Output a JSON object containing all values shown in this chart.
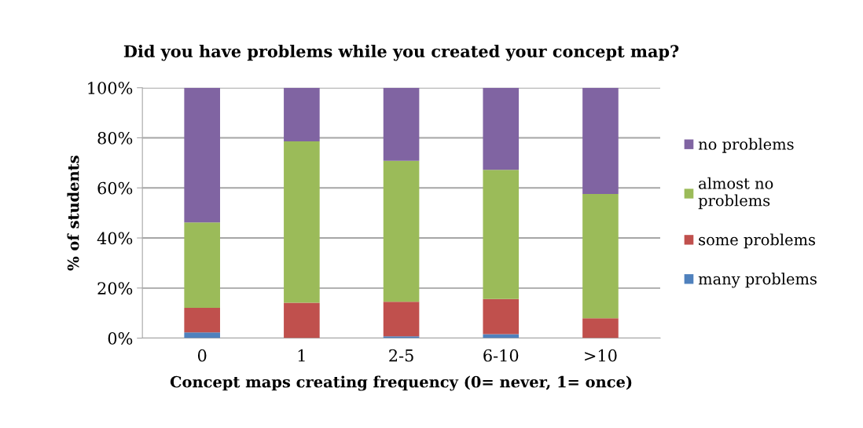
{
  "chart_data": {
    "type": "bar",
    "stacked": true,
    "title": "Did you have problems while you created your concept map?",
    "xlabel": "Concept maps creating frequency (0= never, 1= once)",
    "ylabel": "% of students",
    "categories": [
      "0",
      "1",
      "2-5",
      "6-10",
      ">10"
    ],
    "series": [
      {
        "name": "many problems",
        "color": "#4f81bd",
        "values": [
          2.3,
          0,
          0.7,
          1.6,
          0
        ]
      },
      {
        "name": "some problems",
        "color": "#c0504d",
        "values": [
          9.8,
          14.1,
          13.8,
          14.0,
          7.9
        ]
      },
      {
        "name": "almost no problems",
        "color": "#9bbb59",
        "values": [
          34.1,
          64.5,
          56.3,
          51.6,
          49.7
        ]
      },
      {
        "name": "no problems",
        "color": "#8064a2",
        "values": [
          53.8,
          21.4,
          29.2,
          32.8,
          42.4
        ]
      }
    ],
    "ylim": [
      0,
      100
    ],
    "yticks": [
      {
        "value": 0,
        "label": "0%"
      },
      {
        "value": 20,
        "label": "20%"
      },
      {
        "value": 40,
        "label": "40%"
      },
      {
        "value": 60,
        "label": "60%"
      },
      {
        "value": 80,
        "label": "80%"
      },
      {
        "value": 100,
        "label": "100%"
      }
    ],
    "grid": "y",
    "legend": "right"
  }
}
